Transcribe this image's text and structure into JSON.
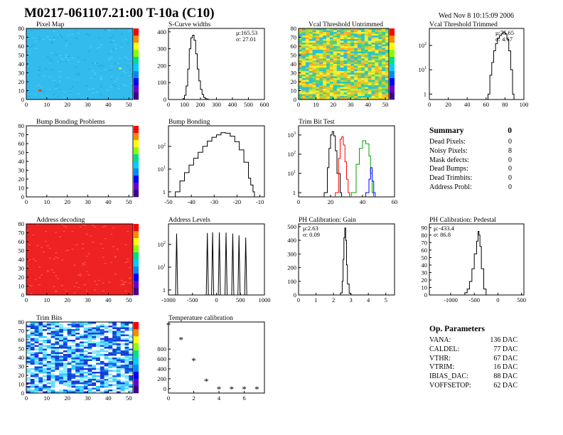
{
  "header": {
    "title": "M0217-061107.21:00 T-10a (C10)",
    "date": "Wed Nov  8 10:15:09 2006"
  },
  "colors": {
    "frame": "#000000",
    "histogram": "#000000",
    "trim_curve_1": "#000000",
    "trim_curve_2": "#ff0000",
    "trim_curve_3": "#00a000",
    "trim_curve_4": "#0000ff",
    "map_background": "#33bbee",
    "address_map": "#ee2222"
  },
  "chart_data": [
    {
      "id": "pixel-map",
      "type": "heatmap",
      "title": "Pixel Map",
      "xlim": [
        0,
        52
      ],
      "ylim": [
        0,
        80
      ],
      "xticks": [
        "0",
        "10",
        "20",
        "30",
        "40",
        "50"
      ],
      "yticks": [
        "0",
        "10",
        "20",
        "30",
        "40",
        "50",
        "60",
        "70",
        "80"
      ],
      "fill": "uniform light blue"
    },
    {
      "id": "s-curve-widths",
      "type": "line",
      "title": "S-Curve widths",
      "stats": [
        "μ:165.53",
        "σ: 27.01"
      ],
      "xlim": [
        0,
        600
      ],
      "ylim": [
        0,
        420
      ],
      "xticks": [
        "0",
        "100",
        "200",
        "300",
        "400",
        "500",
        "600"
      ],
      "yticks": [
        "0",
        "100",
        "200",
        "300",
        "400"
      ],
      "x": [
        80,
        90,
        100,
        110,
        120,
        130,
        140,
        150,
        160,
        170,
        180,
        190,
        200,
        210,
        220,
        230,
        240,
        250
      ],
      "y": [
        0,
        5,
        25,
        80,
        180,
        300,
        365,
        380,
        350,
        270,
        180,
        110,
        60,
        30,
        12,
        5,
        2,
        0
      ]
    },
    {
      "id": "vcal-threshold-untrimmed",
      "type": "heatmap",
      "title": "Vcal Threshold Untrimmed",
      "xlim": [
        0,
        52
      ],
      "ylim": [
        0,
        80
      ],
      "xticks": [
        "0",
        "10",
        "20",
        "30",
        "40",
        "50"
      ],
      "yticks": [
        "0",
        "10",
        "20",
        "30",
        "40",
        "50",
        "60",
        "70",
        "80"
      ],
      "fill": "noisy mix of yellow, green and cyan"
    },
    {
      "id": "vcal-threshold-trimmed",
      "type": "line",
      "title": "Vcal Threshold Trimmed",
      "stats": [
        "μ:75.65",
        "σ: 4.17"
      ],
      "log_y": true,
      "xlim": [
        0,
        100
      ],
      "ylim": [
        0.6,
        500
      ],
      "xticks": [
        "0",
        "20",
        "40",
        "60",
        "80",
        "100"
      ],
      "x": [
        62,
        64,
        66,
        68,
        70,
        72,
        74,
        76,
        78,
        80,
        82,
        84,
        86,
        88
      ],
      "y": [
        1,
        6,
        20,
        60,
        120,
        200,
        250,
        300,
        350,
        300,
        180,
        60,
        10,
        1
      ]
    },
    {
      "id": "bump-bonding-problems",
      "type": "heatmap",
      "title": "Bump Bonding Problems",
      "xlim": [
        0,
        52
      ],
      "ylim": [
        0,
        80
      ],
      "xticks": [
        "0",
        "10",
        "20",
        "30",
        "40",
        "50"
      ],
      "yticks": [
        "0",
        "10",
        "20",
        "30",
        "40",
        "50",
        "60",
        "70",
        "80"
      ],
      "fill": "empty"
    },
    {
      "id": "bump-bonding",
      "type": "line",
      "title": "Bump Bonding",
      "log_y": true,
      "xlim": [
        -50,
        -8
      ],
      "ylim": [
        0.6,
        800
      ],
      "xticks": [
        "-50",
        "-40",
        "-30",
        "-20",
        "-10"
      ],
      "x": [
        -47,
        -45,
        -43,
        -41,
        -39,
        -37,
        -35,
        -33,
        -31,
        -29,
        -27,
        -25,
        -23,
        -21,
        -19,
        -17,
        -15,
        -14,
        -13
      ],
      "y": [
        1,
        3,
        7,
        15,
        30,
        55,
        100,
        170,
        250,
        320,
        400,
        380,
        280,
        160,
        70,
        20,
        4,
        2,
        1
      ]
    },
    {
      "id": "trim-bit-test",
      "type": "line",
      "title": "Trim Bit Test",
      "log_y": true,
      "xlim": [
        0,
        60
      ],
      "ylim": [
        0.6,
        3000
      ],
      "xticks": [
        "0",
        "20",
        "40",
        "60"
      ],
      "series": [
        {
          "x": [
            16,
            18,
            19,
            20,
            21,
            22,
            23,
            24,
            26
          ],
          "y": [
            1,
            20,
            200,
            1000,
            1500,
            900,
            150,
            10,
            1
          ]
        },
        {
          "x": [
            23,
            25,
            26,
            27,
            28,
            29,
            30,
            31
          ],
          "y": [
            1,
            60,
            600,
            800,
            300,
            40,
            5,
            1
          ]
        },
        {
          "x": [
            33,
            36,
            38,
            40,
            42,
            44,
            45,
            46
          ],
          "y": [
            1,
            30,
            200,
            500,
            350,
            80,
            10,
            1
          ]
        },
        {
          "x": [
            42,
            44,
            45,
            46,
            47
          ],
          "y": [
            1,
            5,
            20,
            4,
            1
          ]
        }
      ]
    },
    {
      "id": "address-decoding",
      "type": "heatmap",
      "title": "Address decoding",
      "xlim": [
        0,
        52
      ],
      "ylim": [
        0,
        80
      ],
      "xticks": [
        "0",
        "10",
        "20",
        "30",
        "40",
        "50"
      ],
      "yticks": [
        "0",
        "10",
        "20",
        "30",
        "40",
        "50",
        "60",
        "70",
        "80"
      ],
      "fill": "uniform red"
    },
    {
      "id": "address-levels",
      "type": "line",
      "title": "Address Levels",
      "log_y": true,
      "xlim": [
        -1000,
        1000
      ],
      "ylim": [
        0.6,
        800
      ],
      "xticks": [
        "-1000",
        "-500",
        "0",
        "500",
        "1000"
      ],
      "peaks_x": [
        -830,
        -190,
        -80,
        60,
        200,
        340,
        470,
        610
      ],
      "peaks_y": [
        300,
        320,
        340,
        340,
        330,
        300,
        250,
        200
      ]
    },
    {
      "id": "ph-calibration-gain",
      "type": "line",
      "title": "PH Calibration: Gain",
      "stats": [
        "μ:2.63",
        "σ: 0.09"
      ],
      "xlim": [
        0,
        5.5
      ],
      "ylim": [
        0,
        520
      ],
      "xticks": [
        "0",
        "1",
        "2",
        "3",
        "4",
        "5"
      ],
      "yticks": [
        "0",
        "100",
        "200",
        "300",
        "400",
        "500"
      ],
      "x": [
        2.3,
        2.4,
        2.5,
        2.55,
        2.6,
        2.65,
        2.7,
        2.75,
        2.8,
        2.9,
        3.0
      ],
      "y": [
        0,
        15,
        100,
        260,
        420,
        490,
        400,
        220,
        80,
        12,
        0
      ]
    },
    {
      "id": "ph-calibration-pedestal",
      "type": "line",
      "title": "PH Calibration: Pedestal",
      "stats": [
        "μ:-433.4",
        "σ: 86.8"
      ],
      "xlim": [
        -1450,
        550
      ],
      "ylim": [
        0,
        95
      ],
      "xticks": [
        "-1000",
        "-500",
        "0",
        "500"
      ],
      "yticks": [
        "0",
        "10",
        "20",
        "30",
        "40",
        "50",
        "60",
        "70",
        "80",
        "90"
      ],
      "x": [
        -750,
        -700,
        -650,
        -600,
        -550,
        -500,
        -450,
        -420,
        -400,
        -380,
        -350,
        -300,
        -250
      ],
      "y": [
        0,
        3,
        8,
        18,
        35,
        55,
        72,
        85,
        80,
        65,
        35,
        8,
        0
      ]
    },
    {
      "id": "trim-bits",
      "type": "heatmap",
      "title": "Trim Bits",
      "xlim": [
        0,
        52
      ],
      "ylim": [
        0,
        80
      ],
      "xticks": [
        "0",
        "10",
        "20",
        "30",
        "40",
        "50"
      ],
      "yticks": [
        "0",
        "10",
        "20",
        "30",
        "40",
        "50",
        "60",
        "70",
        "80"
      ],
      "fill": "random blue, white and cyan speckle"
    },
    {
      "id": "temperature-calibration",
      "type": "scatter",
      "title": "Temperature calibration",
      "xlim": [
        0,
        7.6
      ],
      "ylim": [
        -90,
        1350
      ],
      "xticks": [
        "0",
        "2",
        "4",
        "6"
      ],
      "yticks": [
        "0",
        "200",
        "400",
        "600",
        "800"
      ],
      "x": [
        0,
        1,
        2,
        3,
        4,
        5,
        6,
        7
      ],
      "y": [
        1280,
        980,
        560,
        140,
        -20,
        -20,
        -20,
        -20
      ]
    }
  ],
  "summary": {
    "title": "Summary",
    "total": "0",
    "rows": [
      {
        "label": "Dead Pixels:",
        "value": "0"
      },
      {
        "label": "Noisy Pixels:",
        "value": "8"
      },
      {
        "label": "Mask defects:",
        "value": "0"
      },
      {
        "label": "Dead Bumps:",
        "value": "0"
      },
      {
        "label": "Dead Trimbits:",
        "value": "0"
      },
      {
        "label": "Address Probl:",
        "value": "0"
      }
    ]
  },
  "op_params": {
    "title": "Op. Parameters",
    "rows": [
      {
        "label": "VANA:",
        "value": "136 DAC"
      },
      {
        "label": "CALDEL:",
        "value": "77 DAC"
      },
      {
        "label": "VTHR:",
        "value": "67 DAC"
      },
      {
        "label": "VTRIM:",
        "value": "16 DAC"
      },
      {
        "label": "IBIAS_DAC:",
        "value": "88 DAC"
      },
      {
        "label": "VOFFSETOP:",
        "value": "62 DAC"
      }
    ]
  }
}
